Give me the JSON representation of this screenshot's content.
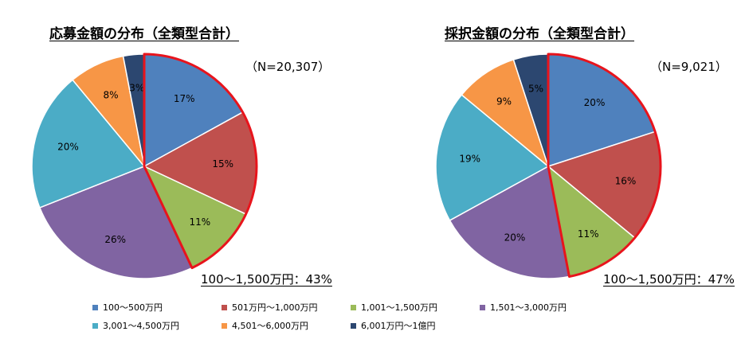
{
  "chart_data": [
    {
      "type": "pie",
      "title": "応募金額の分布（全類型合計）",
      "n_label": "（N=20,307）",
      "annotation": "100～1,500万円：43%",
      "categories": [
        "100～500万円",
        "501万円～1,000万円",
        "1,001～1,500万円",
        "1,501～3,000万円",
        "3,001～4,500万円",
        "4,501～6,000万円",
        "6,001万円～1億円"
      ],
      "values": [
        17,
        15,
        11,
        26,
        20,
        8,
        3
      ],
      "value_labels": [
        "17%",
        "15%",
        "11%",
        "26%",
        "20%",
        "8%",
        "3%"
      ],
      "highlight_categories": [
        "100～500万円",
        "501万円～1,000万円",
        "1,001～1,500万円"
      ],
      "highlight_color": "#e8141c"
    },
    {
      "type": "pie",
      "title": "採択金額の分布（全類型合計）",
      "n_label": "（N=9,021）",
      "annotation": "100～1,500万円：47%",
      "categories": [
        "100～500万円",
        "501万円～1,000万円",
        "1,001～1,500万円",
        "1,501～3,000万円",
        "3,001～4,500万円",
        "4,501～6,000万円",
        "6,001万円～1億円"
      ],
      "values": [
        20,
        16,
        11,
        20,
        19,
        9,
        5
      ],
      "value_labels": [
        "20%",
        "16%",
        "11%",
        "20%",
        "19%",
        "9%",
        "5%"
      ],
      "highlight_categories": [
        "100～500万円",
        "501万円～1,000万円",
        "1,001～1,500万円"
      ],
      "highlight_color": "#e8141c"
    }
  ],
  "legend": {
    "placement": "bottom",
    "items": [
      {
        "label": "100～500万円",
        "color": "#4f81bd"
      },
      {
        "label": "501万円～1,000万円",
        "color": "#c0504d"
      },
      {
        "label": "1,001～1,500万円",
        "color": "#9bbb59"
      },
      {
        "label": "1,501～3,000万円",
        "color": "#8064a2"
      },
      {
        "label": "3,001～4,500万円",
        "color": "#4bacc6"
      },
      {
        "label": "4,501～6,000万円",
        "color": "#f79646"
      },
      {
        "label": "6,001万円～1億円",
        "color": "#2c4770"
      }
    ]
  }
}
